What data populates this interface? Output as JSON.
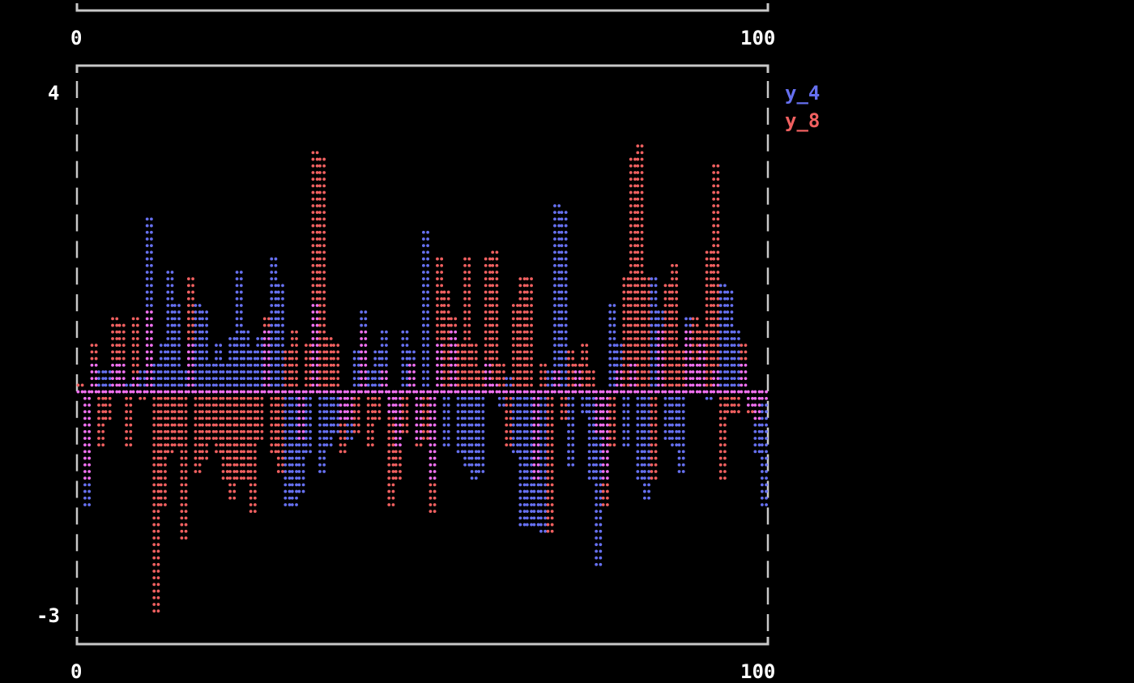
{
  "chart_data": {
    "type": "bar",
    "style": "braille stem plot",
    "top_axis": {
      "xlim": [
        0,
        100
      ],
      "xticks": [
        "0",
        "100"
      ]
    },
    "xlim": [
      0,
      100
    ],
    "ylim": [
      -3,
      4
    ],
    "xticks": [
      "0",
      "100"
    ],
    "yticks": [
      "4",
      "-3"
    ],
    "legend_placement": "right",
    "colors": {
      "y_4": "#6670f0",
      "y_8": "#f06060",
      "overlap": "#f070f0",
      "frame": "#c8c8c8"
    },
    "x": [
      0,
      1,
      2,
      3,
      4,
      5,
      6,
      7,
      8,
      9,
      10,
      11,
      12,
      13,
      14,
      15,
      16,
      17,
      18,
      19,
      20,
      21,
      22,
      23,
      24,
      25,
      26,
      27,
      28,
      29,
      30,
      31,
      32,
      33,
      34,
      35,
      36,
      37,
      38,
      39,
      40,
      41,
      42,
      43,
      44,
      45,
      46,
      47,
      48,
      49,
      50,
      51,
      52,
      53,
      54,
      55,
      56,
      57,
      58,
      59,
      60,
      61,
      62,
      63,
      64,
      65,
      66,
      67,
      68,
      69,
      70,
      71,
      72,
      73,
      74,
      75,
      76,
      77,
      78,
      79,
      80,
      81,
      82,
      83,
      84,
      85,
      86,
      87,
      88,
      89,
      90,
      91,
      92,
      93,
      94,
      95,
      96,
      97,
      98,
      99
    ],
    "series": [
      {
        "name": "y_4",
        "values": [
          0.0,
          -1.5,
          0.4,
          0.3,
          0.3,
          0.35,
          0.35,
          0.1,
          0.2,
          0.3,
          2.3,
          0.4,
          0.6,
          1.6,
          1.2,
          0.3,
          0.6,
          1.2,
          1.1,
          0.4,
          0.6,
          0.4,
          0.7,
          1.6,
          0.8,
          0.5,
          0.7,
          0.8,
          1.8,
          1.4,
          -1.5,
          -1.5,
          -1.3,
          -0.8,
          1.2,
          -1.1,
          -0.7,
          -0.5,
          -0.4,
          -0.6,
          0.5,
          1.1,
          0.3,
          0.5,
          0.8,
          -0.3,
          -0.7,
          0.8,
          0.5,
          -0.6,
          2.1,
          -1.2,
          0.6,
          -0.7,
          0.8,
          -0.8,
          -1.0,
          -1.2,
          -1.1,
          0.4,
          0.1,
          -0.2,
          0.2,
          -0.8,
          -1.8,
          -1.8,
          -1.8,
          -1.9,
          0.3,
          2.5,
          2.4,
          -1.0,
          0.3,
          -0.3,
          -1.2,
          -2.3,
          -1.2,
          1.2,
          0.6,
          -0.7,
          0.4,
          -1.2,
          -1.4,
          1.5,
          1.1,
          -0.6,
          -0.7,
          -1.1,
          1.0,
          0.4,
          0.6,
          -0.1,
          0.3,
          1.4,
          1.3,
          0.8,
          0.4,
          -0.2,
          -0.8,
          -1.5
        ]
      },
      {
        "name": "y_8",
        "values": [
          0.05,
          -1.2,
          0.6,
          -0.7,
          -0.4,
          1.0,
          0.9,
          -0.7,
          1.0,
          -0.05,
          1.1,
          -2.9,
          -1.5,
          -0.8,
          -0.7,
          -2.0,
          1.5,
          -1.1,
          -0.9,
          -0.6,
          -0.8,
          -1.2,
          -1.4,
          -1.2,
          -1.2,
          -1.6,
          -0.6,
          1.0,
          -0.8,
          -1.1,
          0.5,
          0.8,
          -0.6,
          0.6,
          3.2,
          3.1,
          0.7,
          0.6,
          -0.8,
          -0.4,
          -0.5,
          0.8,
          -0.7,
          -0.4,
          0.3,
          -1.5,
          -1.2,
          -0.5,
          0.4,
          -0.7,
          -0.6,
          -1.6,
          1.8,
          1.3,
          1.0,
          0.6,
          1.8,
          0.6,
          0.3,
          1.8,
          1.9,
          0.4,
          -0.7,
          1.2,
          1.5,
          1.5,
          -1.2,
          0.4,
          -1.9,
          0.3,
          -0.4,
          0.5,
          0.4,
          0.6,
          0.3,
          -0.5,
          -1.5,
          -0.7,
          0.3,
          1.5,
          3.1,
          3.3,
          1.5,
          -1.2,
          0.8,
          1.4,
          1.7,
          0.5,
          0.8,
          1.0,
          0.8,
          1.9,
          3.0,
          -1.2,
          -0.3,
          -0.3,
          0.6,
          -0.3,
          -0.4,
          -0.1
        ]
      }
    ]
  }
}
